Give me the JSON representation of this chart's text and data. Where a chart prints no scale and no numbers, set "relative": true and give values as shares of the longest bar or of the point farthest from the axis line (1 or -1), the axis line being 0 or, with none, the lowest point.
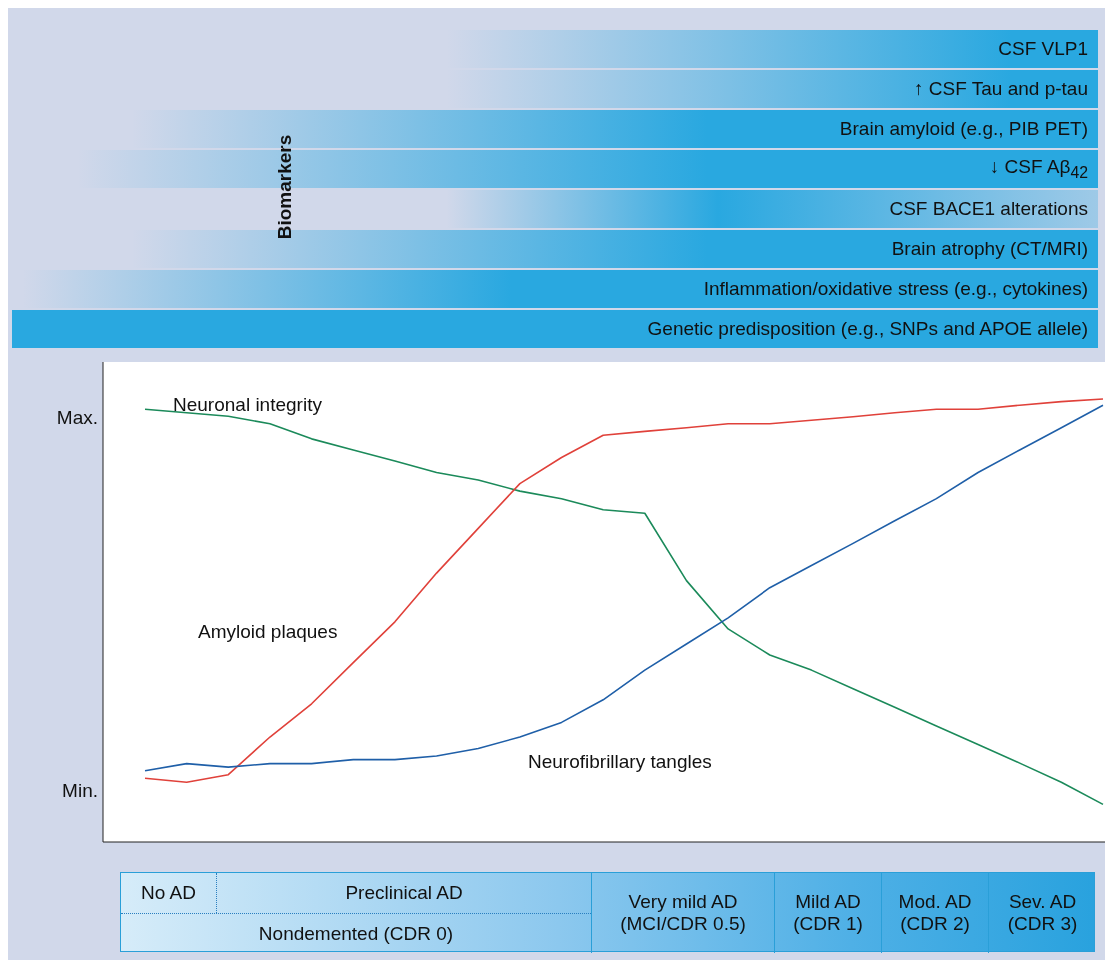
{
  "chart_data": [
    {
      "type": "other",
      "title": "Biomarkers",
      "annotations": [
        "CSF VLP1",
        "↑ CSF Tau and p-tau",
        "Brain amyloid (e.g., PIB PET)",
        "↓ CSF Aβ$_{42}$",
        "CSF BACE1 alterations",
        "Brain atrophy (CT/MRI)",
        "Inflammation/oxidative stress (e.g., cytokines)",
        "Genetic predisposition (e.g., SNPs and APOE allele)"
      ]
    },
    {
      "type": "line",
      "categories": [
        null,
        null,
        null,
        null,
        null,
        null,
        null,
        null,
        null,
        null,
        null,
        null,
        null,
        null,
        null,
        null,
        null,
        null,
        null,
        null,
        null,
        null,
        null,
        null
      ],
      "relative": true,
      "annotations": [
        "Max.",
        "Min."
      ],
      "series": [
        {
          "name": "Neuronal integrity",
          "color": "#1b8a5a",
          "values": [
            0.977,
            0.969,
            0.961,
            0.944,
            0.91,
            0.885,
            0.86,
            0.834,
            0.817,
            0.792,
            0.775,
            0.75,
            0.742,
            0.59,
            0.481,
            0.422,
            0.388,
            0.346,
            0.304,
            0.262,
            0.22,
            0.178,
            0.135,
            0.085
          ]
        },
        {
          "name": "Amyloid plaques",
          "color": "#e0413a",
          "values": [
            0.144,
            0.135,
            0.152,
            0.237,
            0.312,
            0.405,
            0.497,
            0.607,
            0.708,
            0.809,
            0.868,
            0.918,
            0.927,
            0.935,
            0.944,
            0.944,
            0.952,
            0.96,
            0.969,
            0.977,
            0.977,
            0.986,
            0.994,
            1.0
          ]
        },
        {
          "name": "Neurofibrillary tangles",
          "color": "#1f5fa8",
          "values": [
            0.161,
            0.177,
            0.169,
            0.177,
            0.177,
            0.186,
            0.186,
            0.194,
            0.211,
            0.237,
            0.27,
            0.321,
            0.388,
            0.447,
            0.506,
            0.574,
            0.624,
            0.674,
            0.725,
            0.775,
            0.834,
            0.885,
            0.935,
            0.986
          ]
        }
      ]
    },
    {
      "type": "other",
      "annotations": [
        "No AD",
        "Preclinical AD",
        "Nondemented (CDR 0)",
        "Very mild AD (MCI/CDR 0.5)",
        "Mild AD (CDR 1)",
        "Mod. AD (CDR 2)",
        "Sev. AD (CDR 3)"
      ]
    }
  ]
}
